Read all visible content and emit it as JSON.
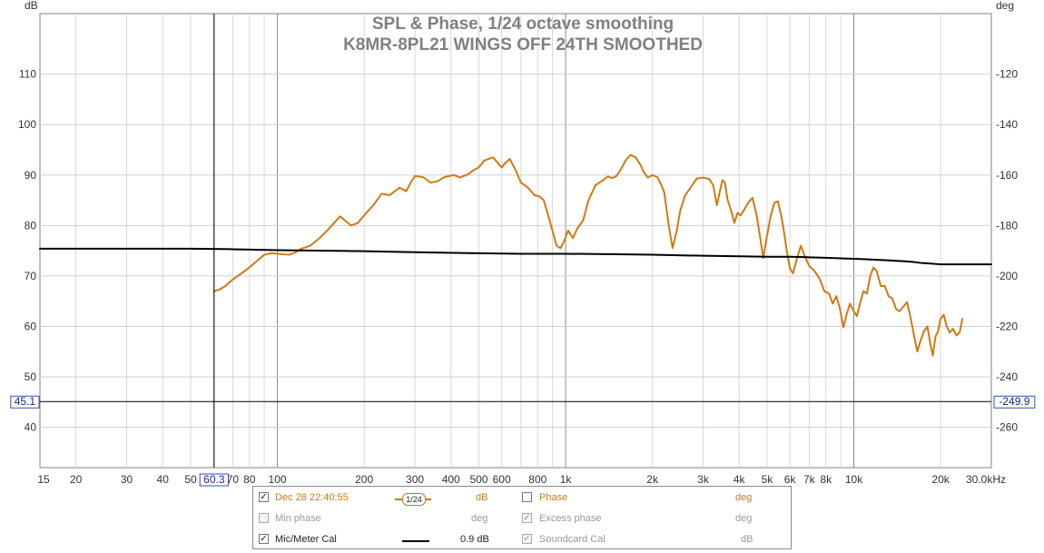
{
  "chart_data": {
    "type": "line",
    "title": "SPL & Phase, 1/24 octave smoothing",
    "subtitle": "K8MR-8PL21 WINGS OFF 24TH SMOOTHED",
    "x_scale": "log",
    "x_unit": "kHz",
    "x_range": [
      15,
      30000
    ],
    "x_ticks": [
      {
        "v": 15,
        "label": "15"
      },
      {
        "v": 20,
        "label": "20"
      },
      {
        "v": 30,
        "label": "30"
      },
      {
        "v": 40,
        "label": "40"
      },
      {
        "v": 50,
        "label": "50"
      },
      {
        "v": 70,
        "label": "70"
      },
      {
        "v": 80,
        "label": "80"
      },
      {
        "v": 100,
        "label": "100"
      },
      {
        "v": 200,
        "label": "200"
      },
      {
        "v": 300,
        "label": "300"
      },
      {
        "v": 400,
        "label": "400"
      },
      {
        "v": 500,
        "label": "500"
      },
      {
        "v": 600,
        "label": "600"
      },
      {
        "v": 800,
        "label": "800"
      },
      {
        "v": 1000,
        "label": "1k"
      },
      {
        "v": 2000,
        "label": "2k"
      },
      {
        "v": 3000,
        "label": "3k"
      },
      {
        "v": 4000,
        "label": "4k"
      },
      {
        "v": 5000,
        "label": "5k"
      },
      {
        "v": 6000,
        "label": "6k"
      },
      {
        "v": 7000,
        "label": "7k"
      },
      {
        "v": 8000,
        "label": "8k"
      },
      {
        "v": 10000,
        "label": "10k"
      },
      {
        "v": 20000,
        "label": "20k"
      },
      {
        "v": 30000,
        "label": "30.0kHz"
      }
    ],
    "y_left": {
      "unit": "dB",
      "range": [
        32,
        122
      ],
      "ticks": [
        40,
        50,
        60,
        70,
        80,
        90,
        100,
        110
      ]
    },
    "y_right": {
      "unit": "deg",
      "range": [
        -276,
        -96
      ],
      "ticks": [
        -120,
        -140,
        -160,
        -180,
        -200,
        -220,
        -240,
        -260
      ]
    },
    "grid": true,
    "cursor": {
      "x": 60.3,
      "x_label": "60.3",
      "y": 45.1,
      "y_label": "45.1",
      "y_right_label": "-249.9"
    },
    "series": [
      {
        "name": "Dec 28 22:40:55",
        "color": "#d07a13",
        "axis": "left",
        "points": [
          [
            60.3,
            67.0
          ],
          [
            63,
            67.3
          ],
          [
            66,
            68.0
          ],
          [
            70,
            69.3
          ],
          [
            75,
            70.5
          ],
          [
            80,
            71.7
          ],
          [
            85,
            73.0
          ],
          [
            90,
            74.2
          ],
          [
            95,
            74.5
          ],
          [
            100,
            74.4
          ],
          [
            110,
            74.2
          ],
          [
            115,
            74.6
          ],
          [
            120,
            75.3
          ],
          [
            130,
            76.0
          ],
          [
            140,
            77.5
          ],
          [
            150,
            79.2
          ],
          [
            160,
            81.0
          ],
          [
            165,
            81.8
          ],
          [
            170,
            81.2
          ],
          [
            180,
            80.0
          ],
          [
            190,
            80.5
          ],
          [
            200,
            82.0
          ],
          [
            215,
            84.0
          ],
          [
            230,
            86.3
          ],
          [
            245,
            86.0
          ],
          [
            265,
            87.5
          ],
          [
            280,
            86.8
          ],
          [
            290,
            88.5
          ],
          [
            300,
            89.8
          ],
          [
            320,
            89.6
          ],
          [
            340,
            88.5
          ],
          [
            360,
            88.8
          ],
          [
            380,
            89.6
          ],
          [
            410,
            90.0
          ],
          [
            430,
            89.5
          ],
          [
            460,
            90.2
          ],
          [
            480,
            91.0
          ],
          [
            500,
            91.5
          ],
          [
            520,
            92.8
          ],
          [
            540,
            93.2
          ],
          [
            560,
            93.5
          ],
          [
            580,
            92.5
          ],
          [
            600,
            91.5
          ],
          [
            620,
            92.5
          ],
          [
            640,
            93.2
          ],
          [
            670,
            91.0
          ],
          [
            700,
            88.5
          ],
          [
            740,
            87.5
          ],
          [
            780,
            86.0
          ],
          [
            810,
            85.8
          ],
          [
            840,
            85.0
          ],
          [
            870,
            82.0
          ],
          [
            900,
            79.0
          ],
          [
            930,
            76.0
          ],
          [
            960,
            75.5
          ],
          [
            990,
            77.0
          ],
          [
            1020,
            79.0
          ],
          [
            1060,
            77.5
          ],
          [
            1100,
            79.5
          ],
          [
            1150,
            81.0
          ],
          [
            1200,
            85.0
          ],
          [
            1270,
            88.0
          ],
          [
            1350,
            89.0
          ],
          [
            1400,
            89.7
          ],
          [
            1450,
            89.4
          ],
          [
            1500,
            89.8
          ],
          [
            1550,
            91.0
          ],
          [
            1620,
            93.0
          ],
          [
            1680,
            94.0
          ],
          [
            1750,
            93.5
          ],
          [
            1820,
            92.0
          ],
          [
            1870,
            90.5
          ],
          [
            1930,
            89.5
          ],
          [
            2000,
            90.0
          ],
          [
            2080,
            89.6
          ],
          [
            2150,
            88.0
          ],
          [
            2200,
            86.5
          ],
          [
            2280,
            80.0
          ],
          [
            2350,
            75.5
          ],
          [
            2430,
            79.0
          ],
          [
            2500,
            83.0
          ],
          [
            2600,
            86.0
          ],
          [
            2750,
            88.0
          ],
          [
            2850,
            89.3
          ],
          [
            3000,
            89.5
          ],
          [
            3150,
            89.2
          ],
          [
            3250,
            88.0
          ],
          [
            3350,
            84.0
          ],
          [
            3420,
            86.5
          ],
          [
            3500,
            89.0
          ],
          [
            3570,
            88.5
          ],
          [
            3650,
            85.0
          ],
          [
            3750,
            83.0
          ],
          [
            3850,
            80.5
          ],
          [
            3950,
            82.5
          ],
          [
            4050,
            82.0
          ],
          [
            4150,
            83.0
          ],
          [
            4300,
            84.5
          ],
          [
            4450,
            85.5
          ],
          [
            4600,
            82.0
          ],
          [
            4750,
            77.0
          ],
          [
            4850,
            73.5
          ],
          [
            5000,
            78.0
          ],
          [
            5150,
            82.0
          ],
          [
            5300,
            84.5
          ],
          [
            5450,
            84.8
          ],
          [
            5600,
            82.0
          ],
          [
            5750,
            78.0
          ],
          [
            5850,
            75.0
          ],
          [
            6000,
            71.5
          ],
          [
            6150,
            70.5
          ],
          [
            6350,
            73.5
          ],
          [
            6550,
            76.0
          ],
          [
            6750,
            74.0
          ],
          [
            7000,
            72.0
          ],
          [
            7300,
            71.0
          ],
          [
            7600,
            69.5
          ],
          [
            7900,
            67.0
          ],
          [
            8200,
            66.5
          ],
          [
            8450,
            64.5
          ],
          [
            8700,
            66.0
          ],
          [
            8950,
            63.5
          ],
          [
            9200,
            59.8
          ],
          [
            9450,
            62.5
          ],
          [
            9700,
            64.5
          ],
          [
            10000,
            63.0
          ],
          [
            10250,
            62.0
          ],
          [
            10500,
            64.5
          ],
          [
            10800,
            67.0
          ],
          [
            11100,
            66.5
          ],
          [
            11400,
            70.0
          ],
          [
            11700,
            71.7
          ],
          [
            12000,
            71.0
          ],
          [
            12400,
            68.0
          ],
          [
            12800,
            68.0
          ],
          [
            13200,
            66.0
          ],
          [
            13600,
            65.5
          ],
          [
            14000,
            63.5
          ],
          [
            14400,
            63.0
          ],
          [
            14900,
            64.0
          ],
          [
            15300,
            64.8
          ],
          [
            15700,
            62.0
          ],
          [
            16200,
            58.0
          ],
          [
            16600,
            55.0
          ],
          [
            17000,
            57.0
          ],
          [
            17500,
            59.0
          ],
          [
            18000,
            60.0
          ],
          [
            18500,
            56.0
          ],
          [
            18800,
            54.2
          ],
          [
            19200,
            58.0
          ],
          [
            19600,
            59.0
          ],
          [
            20000,
            61.5
          ],
          [
            20500,
            62.3
          ],
          [
            21000,
            60.0
          ],
          [
            21500,
            58.8
          ],
          [
            22100,
            59.5
          ],
          [
            22700,
            58.2
          ],
          [
            23300,
            58.8
          ],
          [
            23800,
            61.5
          ]
        ]
      },
      {
        "name": "Mic/Meter Cal",
        "color": "#000000",
        "axis": "left",
        "points": [
          [
            15,
            75.4
          ],
          [
            30,
            75.4
          ],
          [
            50,
            75.4
          ],
          [
            70,
            75.3
          ],
          [
            100,
            75.1
          ],
          [
            150,
            75.0
          ],
          [
            200,
            74.9
          ],
          [
            300,
            74.7
          ],
          [
            500,
            74.5
          ],
          [
            700,
            74.4
          ],
          [
            1000,
            74.4
          ],
          [
            1500,
            74.3
          ],
          [
            2000,
            74.2
          ],
          [
            3000,
            74.0
          ],
          [
            4000,
            73.9
          ],
          [
            5000,
            73.8
          ],
          [
            6000,
            73.8
          ],
          [
            7000,
            73.7
          ],
          [
            8000,
            73.6
          ],
          [
            9000,
            73.5
          ],
          [
            10000,
            73.4
          ],
          [
            11000,
            73.3
          ],
          [
            12000,
            73.2
          ],
          [
            13000,
            73.1
          ],
          [
            14000,
            73.0
          ],
          [
            15000,
            72.9
          ],
          [
            16000,
            72.8
          ],
          [
            17000,
            72.6
          ],
          [
            18000,
            72.5
          ],
          [
            19000,
            72.4
          ],
          [
            20000,
            72.3
          ],
          [
            22000,
            72.3
          ],
          [
            25000,
            72.3
          ],
          [
            30000,
            72.3
          ]
        ]
      }
    ]
  },
  "legend": {
    "rows": [
      {
        "left_checked": true,
        "left_enabled": true,
        "left_label": "Dec 28 22:40:55",
        "smoothing": "1/24",
        "left_unit": "dB",
        "right_checked": false,
        "right_enabled": true,
        "right_label": "Phase",
        "right_unit": "deg"
      },
      {
        "left_checked": false,
        "left_enabled": false,
        "left_label": "Min phase",
        "left_unit": "deg",
        "right_checked": true,
        "right_enabled": false,
        "right_label": "Excess phase",
        "right_unit": "deg"
      },
      {
        "left_checked": true,
        "left_enabled": true,
        "left_label": "Mic/Meter Cal",
        "left_value": "0.9 dB",
        "right_checked": true,
        "right_enabled": false,
        "right_label": "Soundcard Cal",
        "right_unit": "dB"
      }
    ]
  }
}
